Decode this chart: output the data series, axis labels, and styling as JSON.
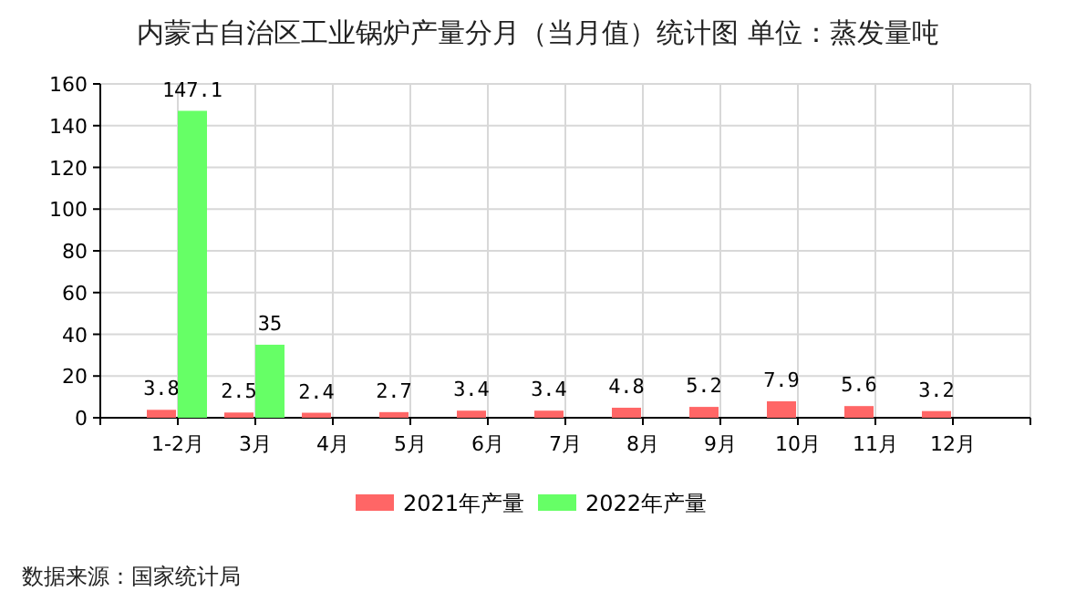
{
  "chart_data": {
    "type": "bar",
    "title": "内蒙古自治区工业锅炉产量分月（当月值）统计图 单位：蒸发量吨",
    "categories": [
      "1-2月",
      "3月",
      "4月",
      "5月",
      "6月",
      "7月",
      "8月",
      "9月",
      "10月",
      "11月",
      "12月"
    ],
    "series": [
      {
        "name": "2021年产量",
        "color": "#ff6666",
        "values": [
          3.8,
          2.5,
          2.4,
          2.7,
          3.4,
          3.4,
          4.8,
          5.2,
          7.9,
          5.6,
          3.2
        ]
      },
      {
        "name": "2022年产量",
        "color": "#66ff66",
        "values": [
          147.1,
          35,
          null,
          null,
          null,
          null,
          null,
          null,
          null,
          null,
          null
        ]
      }
    ],
    "ylim": [
      0,
      160
    ],
    "yticks": [
      0,
      20,
      40,
      60,
      80,
      100,
      120,
      140,
      160
    ],
    "grid": true,
    "legend": "bottom",
    "data_labels": true,
    "annotations": [
      "数据来源：国家统计局"
    ]
  }
}
